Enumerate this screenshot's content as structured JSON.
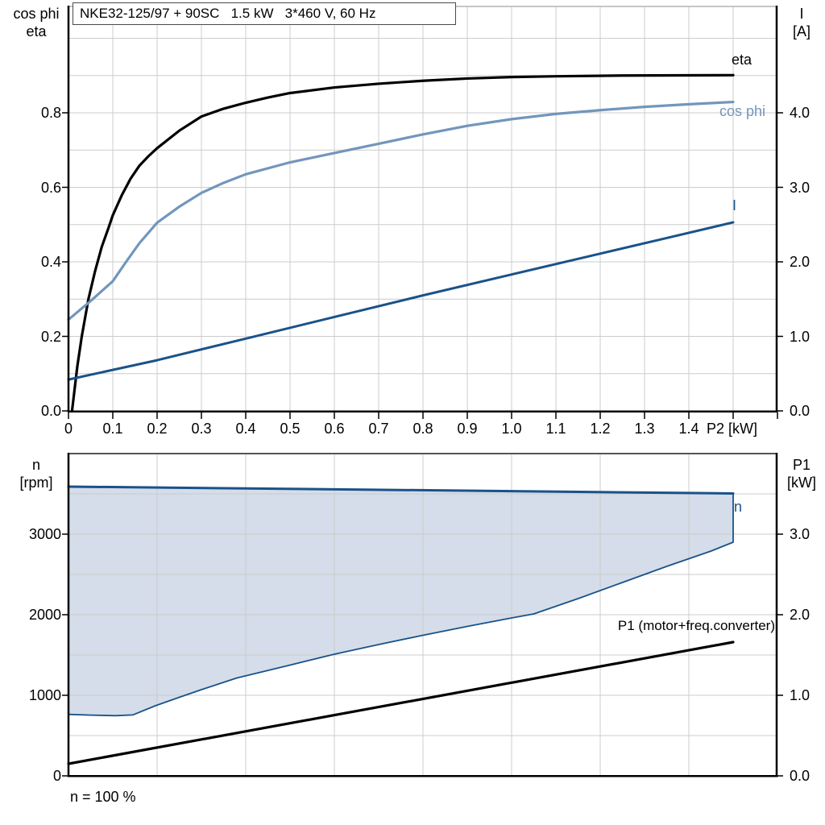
{
  "title_box": {
    "text": "NKE32-125/97 + 90SC   1.5 kW   3*460 V, 60 Hz"
  },
  "colors": {
    "eta_line": "#000000",
    "cos_phi_line": "#7296bc",
    "current_line": "#1a5289",
    "region_fill": "#d4dde9",
    "region_border": "#1a5289",
    "p1_line": "#000000",
    "grid": "#cccccc",
    "axis": "#000000",
    "top_frame": "#b3b3b3",
    "bottom_frame_top": "#555555"
  },
  "top_chart": {
    "left_axis_title_line1": "cos phi",
    "left_axis_title_line2": "eta",
    "right_axis_title_line1": "I",
    "right_axis_title_line2": "[A]",
    "x_axis_unit_label": "P2 [kW]",
    "x_ticks": [
      "0",
      "0.1",
      "0.2",
      "0.3",
      "0.4",
      "0.5",
      "0.6",
      "0.7",
      "0.8",
      "0.9",
      "1.0",
      "1.1",
      "1.2",
      "1.3",
      "1.4"
    ],
    "left_ticks": [
      "0.0",
      "0.2",
      "0.4",
      "0.6",
      "0.8"
    ],
    "right_ticks": [
      "0.0",
      "1.0",
      "2.0",
      "3.0",
      "4.0"
    ],
    "labels": {
      "eta": "eta",
      "cos_phi": "cos phi",
      "current": "I"
    }
  },
  "bottom_chart": {
    "left_axis_title_line1": "n",
    "left_axis_title_line2": "[rpm]",
    "right_axis_title_line1": "P1",
    "right_axis_title_line2": "[kW]",
    "left_ticks": [
      "0",
      "1000",
      "2000",
      "3000"
    ],
    "right_ticks": [
      "0.0",
      "1.0",
      "2.0",
      "3.0"
    ],
    "labels": {
      "n": "n",
      "p1": "P1 (motor+freq.converter)"
    },
    "footnote": "n = 100 %"
  },
  "chart_data": [
    {
      "type": "line",
      "title": "NKE32-125/97 + 90SC 1.5 kW 3*460 V, 60 Hz",
      "xlabel": "P2 [kW]",
      "xlim": [
        0,
        1.6
      ],
      "x_grid_step": 0.1,
      "y_left": {
        "label": "cos phi / eta",
        "lim": [
          0,
          1.086
        ],
        "grid_step": 0.1,
        "ticks": [
          0,
          0.2,
          0.4,
          0.6,
          0.8
        ]
      },
      "y_right": {
        "label": "I [A]",
        "lim": [
          0,
          5.43
        ],
        "ticks": [
          0,
          1,
          2,
          3,
          4
        ]
      },
      "grid": true,
      "legend_position": "inline-right",
      "series": [
        {
          "name": "eta",
          "axis": "left",
          "color": "#000000",
          "width": 3.2,
          "points": [
            [
              0.008,
              0
            ],
            [
              0.02,
              0.12
            ],
            [
              0.03,
              0.2
            ],
            [
              0.045,
              0.3
            ],
            [
              0.06,
              0.375
            ],
            [
              0.075,
              0.44
            ],
            [
              0.09,
              0.49
            ],
            [
              0.1,
              0.525
            ],
            [
              0.12,
              0.578
            ],
            [
              0.14,
              0.623
            ],
            [
              0.16,
              0.658
            ],
            [
              0.18,
              0.683
            ],
            [
              0.2,
              0.705
            ],
            [
              0.25,
              0.752
            ],
            [
              0.3,
              0.79
            ],
            [
              0.35,
              0.811
            ],
            [
              0.4,
              0.827
            ],
            [
              0.45,
              0.841
            ],
            [
              0.5,
              0.853
            ],
            [
              0.6,
              0.868
            ],
            [
              0.7,
              0.878
            ],
            [
              0.8,
              0.886
            ],
            [
              0.9,
              0.892
            ],
            [
              1.0,
              0.896
            ],
            [
              1.1,
              0.898
            ],
            [
              1.25,
              0.9
            ],
            [
              1.5,
              0.901
            ]
          ]
        },
        {
          "name": "cos phi",
          "axis": "left",
          "color": "#7296bc",
          "width": 3.2,
          "points": [
            [
              0,
              0.245
            ],
            [
              0.05,
              0.295
            ],
            [
              0.1,
              0.348
            ],
            [
              0.13,
              0.4
            ],
            [
              0.16,
              0.45
            ],
            [
              0.2,
              0.505
            ],
            [
              0.25,
              0.548
            ],
            [
              0.3,
              0.585
            ],
            [
              0.35,
              0.612
            ],
            [
              0.4,
              0.635
            ],
            [
              0.5,
              0.667
            ],
            [
              0.6,
              0.692
            ],
            [
              0.7,
              0.717
            ],
            [
              0.8,
              0.742
            ],
            [
              0.9,
              0.765
            ],
            [
              1.0,
              0.783
            ],
            [
              1.1,
              0.797
            ],
            [
              1.2,
              0.807
            ],
            [
              1.3,
              0.816
            ],
            [
              1.4,
              0.823
            ],
            [
              1.5,
              0.829
            ]
          ]
        },
        {
          "name": "I",
          "axis": "right",
          "color": "#1a5289",
          "width": 3,
          "points": [
            [
              0,
              0.42
            ],
            [
              0.2,
              0.68
            ],
            [
              0.4,
              0.97
            ],
            [
              0.6,
              1.26
            ],
            [
              0.8,
              1.55
            ],
            [
              1.0,
              1.83
            ],
            [
              1.2,
              2.11
            ],
            [
              1.35,
              2.32
            ],
            [
              1.5,
              2.53
            ]
          ]
        }
      ]
    },
    {
      "type": "area",
      "xlabel": "P2 [kW]",
      "xlim": [
        0,
        1.6
      ],
      "x_grid_step": 0.2,
      "y_left": {
        "label": "n [rpm]",
        "lim": [
          0,
          4000
        ],
        "grid_step": 500,
        "ticks": [
          0,
          1000,
          2000,
          3000
        ]
      },
      "y_right": {
        "label": "P1 [kW]",
        "lim": [
          0,
          4
        ],
        "ticks": [
          0,
          1,
          2,
          3
        ]
      },
      "grid": true,
      "speed_region": {
        "name": "n",
        "note": "n = 100 %",
        "upper_rpm": [
          [
            0,
            3590
          ],
          [
            0.75,
            3548
          ],
          [
            1.5,
            3505
          ]
        ],
        "lower_rpm": [
          [
            0,
            763
          ],
          [
            0.05,
            754
          ],
          [
            0.105,
            747
          ],
          [
            0.145,
            756
          ],
          [
            0.196,
            870
          ],
          [
            0.25,
            975
          ],
          [
            0.3,
            1070
          ],
          [
            0.38,
            1215
          ],
          [
            0.5,
            1375
          ],
          [
            0.6,
            1510
          ],
          [
            0.7,
            1630
          ],
          [
            0.8,
            1745
          ],
          [
            0.9,
            1855
          ],
          [
            1.0,
            1960
          ],
          [
            1.05,
            2010
          ],
          [
            1.15,
            2200
          ],
          [
            1.25,
            2400
          ],
          [
            1.35,
            2600
          ],
          [
            1.45,
            2790
          ],
          [
            1.5,
            2900
          ]
        ]
      },
      "series": [
        {
          "name": "P1 (motor+freq.converter)",
          "axis": "right",
          "color": "#000000",
          "width": 3.2,
          "points": [
            [
              0,
              0.15
            ],
            [
              1.5,
              1.66
            ]
          ]
        }
      ]
    }
  ]
}
